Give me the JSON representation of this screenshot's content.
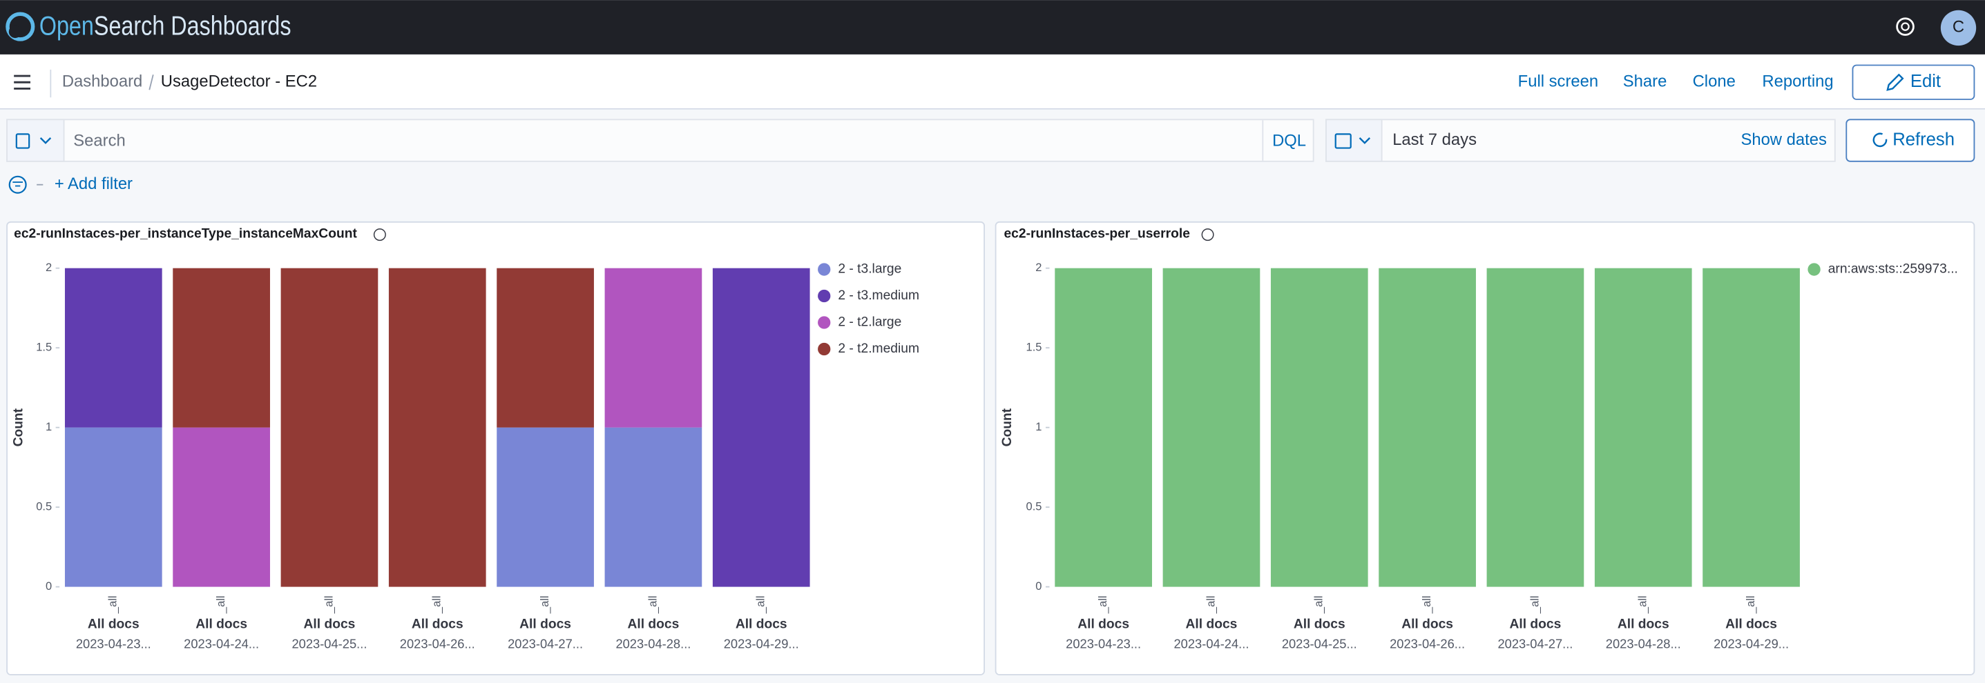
{
  "header": {
    "brand": [
      "Open",
      "Search Dashboards"
    ],
    "avatar": "C"
  },
  "breadcrumbs": [
    "Dashboard",
    "UsageDetector - EC2"
  ],
  "actions": [
    "Full screen",
    "Share",
    "Clone",
    "Reporting",
    "Edit"
  ],
  "query_bar": {
    "placeholder": "Search",
    "language": "DQL",
    "time_range": "Last 7 days",
    "show_dates": "Show dates",
    "refresh": "Refresh"
  },
  "filter_bar": {
    "add_filter": "+ Add filter"
  },
  "chart_data": [
    {
      "type": "bar",
      "stacked": true,
      "title": "ec2-runInstaces-per_instanceType_instanceMaxCount",
      "y_label": "Count",
      "terms": [
        "_all",
        "_all",
        "_all",
        "_all",
        "_all",
        "_all",
        "_all"
      ],
      "filters": [
        "All docs",
        "All docs",
        "All docs",
        "All docs",
        "All docs",
        "All docs",
        "All docs"
      ],
      "categories": [
        "2023-04-23...",
        "2023-04-24...",
        "2023-04-25...",
        "2023-04-26...",
        "2023-04-27...",
        "2023-04-28...",
        "2023-04-29..."
      ],
      "series": [
        {
          "name": "2 - t3.large",
          "color": "#7986d6",
          "values": [
            1,
            null,
            null,
            null,
            1,
            1,
            null
          ]
        },
        {
          "name": "2 - t3.medium",
          "color": "#613db0",
          "values": [
            1,
            null,
            null,
            null,
            null,
            null,
            2
          ]
        },
        {
          "name": "2 - t2.large",
          "color": "#b155bf",
          "values": [
            null,
            1,
            null,
            null,
            null,
            1,
            null
          ]
        },
        {
          "name": "2 - t2.medium",
          "color": "#923a35",
          "values": [
            null,
            1,
            2,
            2,
            1,
            null,
            null
          ]
        }
      ],
      "ylim": [
        0,
        2
      ],
      "yticks": [
        0,
        0.5,
        1,
        1.5,
        2
      ],
      "legend": "right"
    },
    {
      "type": "bar",
      "stacked": true,
      "title": "ec2-runInstaces-per_userrole",
      "y_label": "Count",
      "terms": [
        "_all",
        "_all",
        "_all",
        "_all",
        "_all",
        "_all",
        "_all"
      ],
      "filters": [
        "All docs",
        "All docs",
        "All docs",
        "All docs",
        "All docs",
        "All docs",
        "All docs"
      ],
      "categories": [
        "2023-04-23...",
        "2023-04-24...",
        "2023-04-25...",
        "2023-04-26...",
        "2023-04-27...",
        "2023-04-28...",
        "2023-04-29..."
      ],
      "series": [
        {
          "name": "arn:aws:sts::259973...",
          "color": "#77c17f",
          "values": [
            2,
            2,
            2,
            2,
            2,
            2,
            2
          ]
        }
      ],
      "ylim": [
        0,
        2
      ],
      "yticks": [
        0,
        0.5,
        1,
        1.5,
        2
      ],
      "legend": "right"
    }
  ]
}
